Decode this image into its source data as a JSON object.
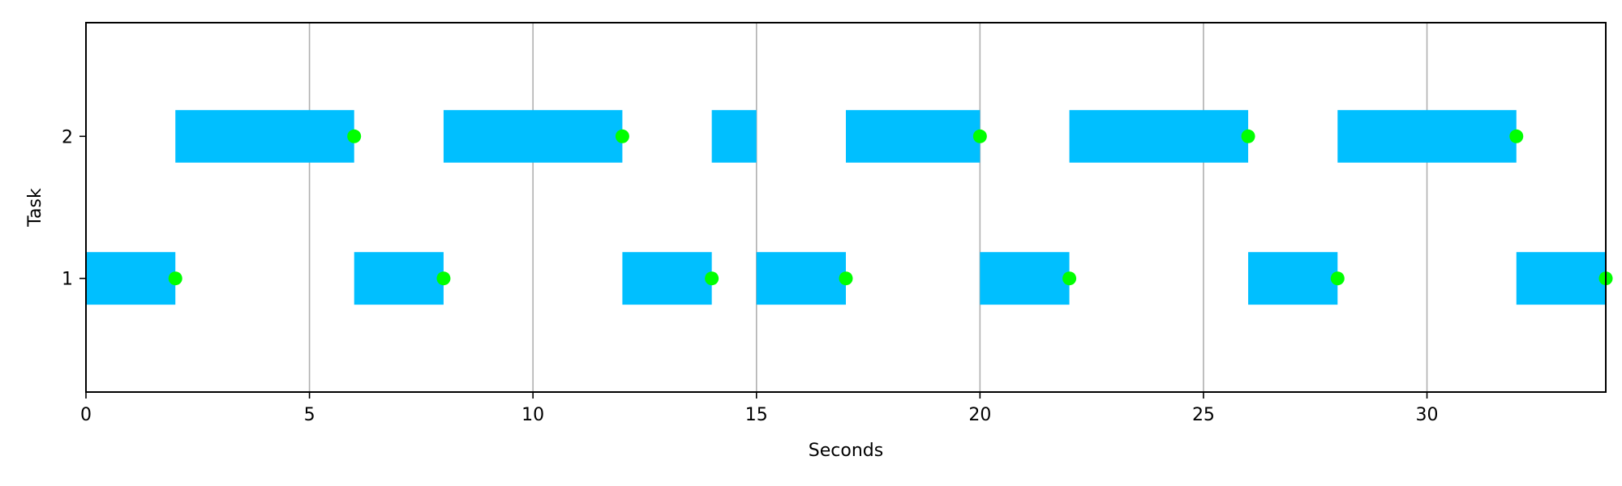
{
  "chart_data": {
    "type": "gantt",
    "title": "",
    "xlabel": "Seconds",
    "ylabel": "Task",
    "xlim": [
      0,
      34
    ],
    "ylim": [
      0.2,
      2.8
    ],
    "xticks": [
      0,
      5,
      10,
      15,
      20,
      25,
      30
    ],
    "yticks": [
      1,
      2
    ],
    "grid": "vertical",
    "colors": {
      "bar": "#00BFFF",
      "marker": "#00FF00",
      "grid": "#b0b0b0",
      "axis": "#000000"
    },
    "series": [
      {
        "task": 1,
        "intervals": [
          [
            0,
            2
          ],
          [
            6,
            8
          ],
          [
            12,
            14
          ],
          [
            15,
            17
          ],
          [
            20,
            22
          ],
          [
            26,
            28
          ],
          [
            32,
            34
          ]
        ],
        "markers": [
          2,
          8,
          14,
          17,
          22,
          28,
          34
        ]
      },
      {
        "task": 2,
        "intervals": [
          [
            2,
            6
          ],
          [
            8,
            12
          ],
          [
            14,
            15
          ],
          [
            17,
            20
          ],
          [
            22,
            26
          ],
          [
            28,
            32
          ]
        ],
        "markers": [
          6,
          12,
          20,
          26,
          32
        ]
      }
    ]
  }
}
